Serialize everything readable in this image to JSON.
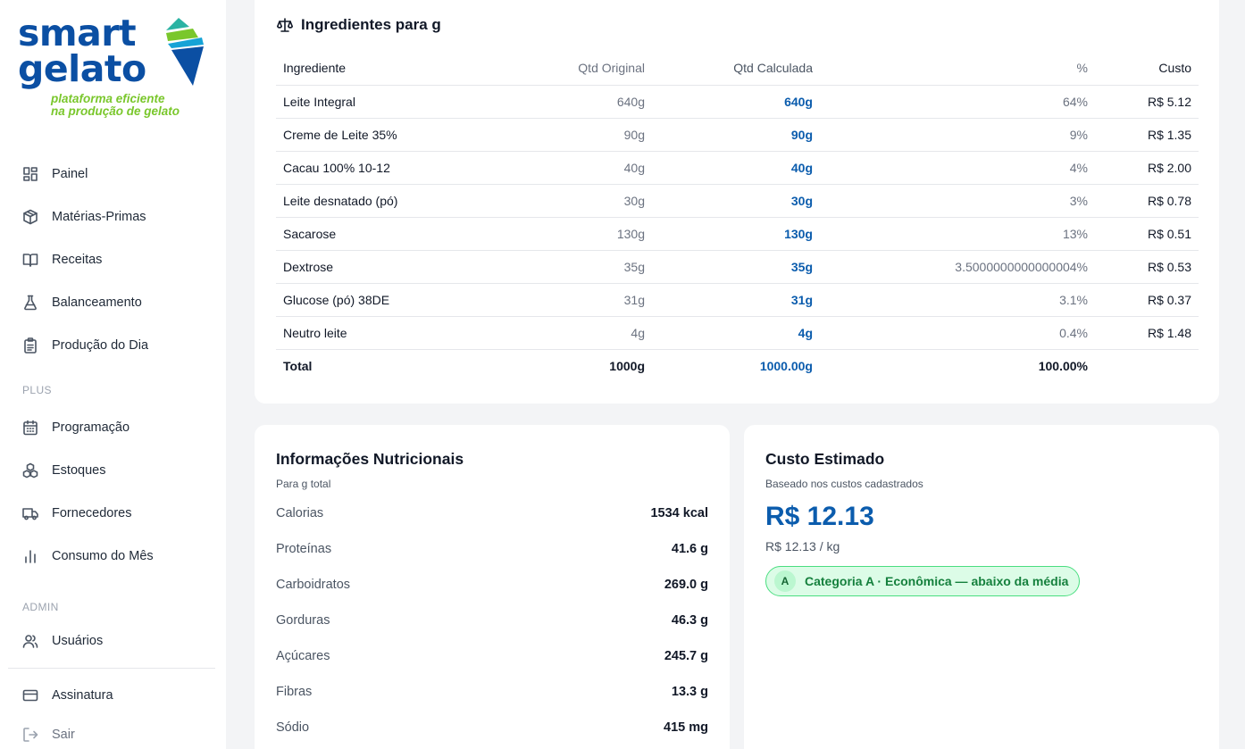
{
  "brand": {
    "word1": "smart",
    "word2": "gelato",
    "tagline1": "plataforma eficiente",
    "tagline2": "na produção de gelato"
  },
  "nav": {
    "main": [
      {
        "label": "Painel",
        "icon": "dashboard-icon"
      },
      {
        "label": "Matérias-Primas",
        "icon": "box-icon"
      },
      {
        "label": "Receitas",
        "icon": "book-icon"
      },
      {
        "label": "Balanceamento",
        "icon": "flask-icon"
      },
      {
        "label": "Produção do Dia",
        "icon": "clipboard-icon"
      }
    ],
    "plus_label": "PLUS",
    "plus": [
      {
        "label": "Programação",
        "icon": "calendar-icon"
      },
      {
        "label": "Estoques",
        "icon": "boxes-icon"
      },
      {
        "label": "Fornecedores",
        "icon": "truck-icon"
      },
      {
        "label": "Consumo do Mês",
        "icon": "bar-chart-icon"
      }
    ],
    "admin_label": "ADMIN",
    "admin": [
      {
        "label": "Usuários",
        "icon": "users-icon"
      }
    ],
    "footer": [
      {
        "label": "Assinatura",
        "icon": "credit-card-icon"
      },
      {
        "label": "Sair",
        "icon": "logout-icon"
      }
    ]
  },
  "ingredients": {
    "title": "Ingredientes para g",
    "headers": {
      "name": "Ingrediente",
      "orig": "Qtd Original",
      "calc": "Qtd Calculada",
      "pct": "%",
      "cost": "Custo"
    },
    "rows": [
      {
        "name": "Leite Integral",
        "orig": "640g",
        "calc": "640g",
        "pct": "64%",
        "cost": "R$ 5.12"
      },
      {
        "name": "Creme de Leite 35%",
        "orig": "90g",
        "calc": "90g",
        "pct": "9%",
        "cost": "R$ 1.35"
      },
      {
        "name": "Cacau 100% 10-12",
        "orig": "40g",
        "calc": "40g",
        "pct": "4%",
        "cost": "R$ 2.00"
      },
      {
        "name": "Leite desnatado (pó)",
        "orig": "30g",
        "calc": "30g",
        "pct": "3%",
        "cost": "R$ 0.78"
      },
      {
        "name": "Sacarose",
        "orig": "130g",
        "calc": "130g",
        "pct": "13%",
        "cost": "R$ 0.51"
      },
      {
        "name": "Dextrose",
        "orig": "35g",
        "calc": "35g",
        "pct": "3.5000000000000004%",
        "cost": "R$ 0.53"
      },
      {
        "name": "Glucose (pó) 38DE",
        "orig": "31g",
        "calc": "31g",
        "pct": "3.1%",
        "cost": "R$ 0.37"
      },
      {
        "name": "Neutro leite",
        "orig": "4g",
        "calc": "4g",
        "pct": "0.4%",
        "cost": "R$ 1.48"
      }
    ],
    "total": {
      "name": "Total",
      "orig": "1000g",
      "calc": "1000.00g",
      "pct": "100.00%",
      "cost": ""
    }
  },
  "nutrition": {
    "title": "Informações Nutricionais",
    "subtitle": "Para g total",
    "rows": [
      {
        "label": "Calorias",
        "value": "1534 kcal"
      },
      {
        "label": "Proteínas",
        "value": "41.6 g"
      },
      {
        "label": "Carboidratos",
        "value": "269.0 g"
      },
      {
        "label": "Gorduras",
        "value": "46.3 g"
      },
      {
        "label": "Açúcares",
        "value": "245.7 g"
      },
      {
        "label": "Fibras",
        "value": "13.3 g"
      },
      {
        "label": "Sódio",
        "value": "415 mg"
      }
    ]
  },
  "cost": {
    "title": "Custo Estimado",
    "subtitle": "Baseado nos custos cadastrados",
    "total": "R$ 12.13",
    "per_kg": "R$ 12.13 / kg",
    "badge_letter": "A",
    "badge_text": "Categoria A · Econômica — abaixo da média"
  },
  "colors": {
    "primary": "#0b5cad",
    "brand_green": "#7ac72c",
    "badge_bg": "#dcfce7",
    "badge_text": "#15803d"
  }
}
